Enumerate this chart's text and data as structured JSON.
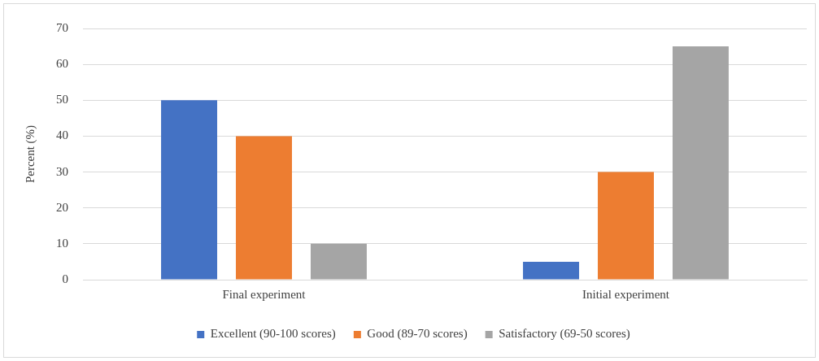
{
  "chart_data": {
    "type": "bar",
    "ylabel": "Percent (%)",
    "categories": [
      "Final experiment",
      "Initial experiment"
    ],
    "series": [
      {
        "name": "Excellent (90-100 scores)",
        "color": "#4472c4",
        "values": [
          50,
          5
        ]
      },
      {
        "name": "Good (89-70 scores)",
        "color": "#ed7d31",
        "values": [
          40,
          30
        ]
      },
      {
        "name": "Satisfactory (69-50 scores)",
        "color": "#a5a5a5",
        "values": [
          10,
          65
        ]
      }
    ],
    "ylim": [
      0,
      70
    ],
    "yticks": [
      0,
      10,
      20,
      30,
      40,
      50,
      60,
      70
    ],
    "grid": "y",
    "legend": "bottom"
  }
}
